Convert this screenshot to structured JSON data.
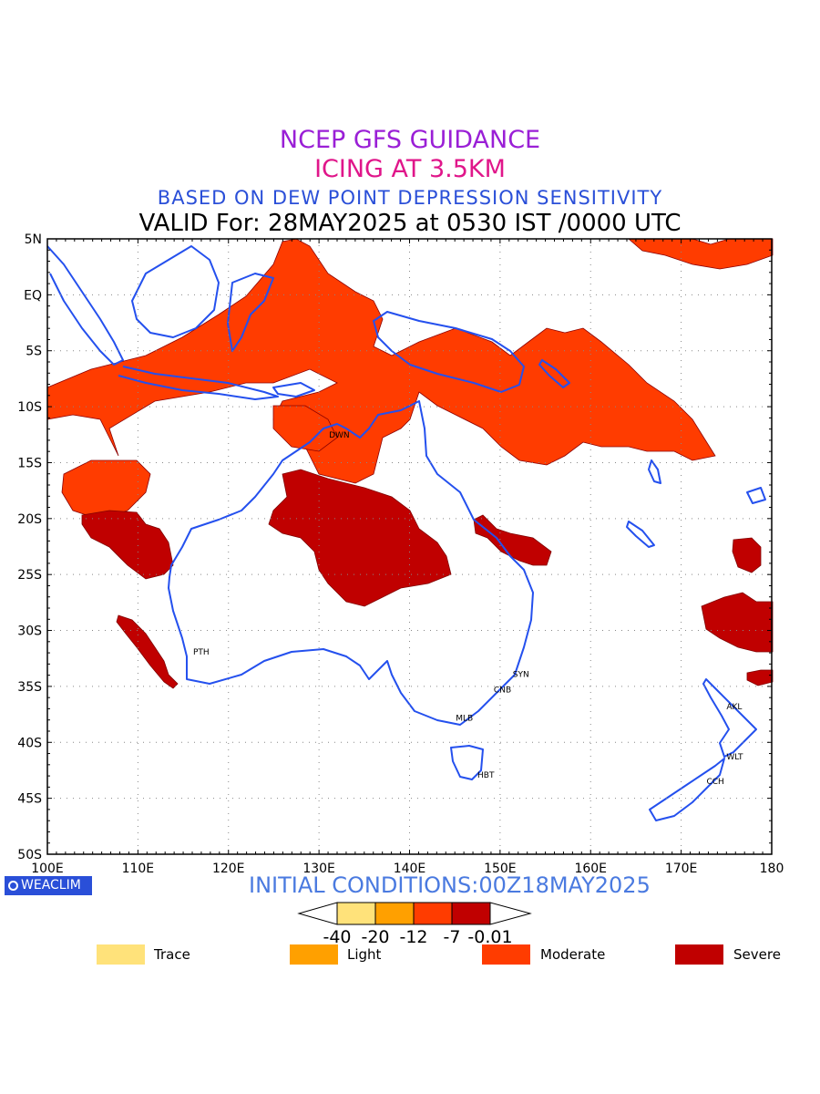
{
  "titles": {
    "line1": "NCEP GFS GUIDANCE",
    "line2": "ICING AT 3.5KM",
    "line3": "BASED ON DEW POINT DEPRESSION SENSITIVITY",
    "line4": "VALID For: 28MAY2025 at 0530 IST /0000 UTC"
  },
  "colors": {
    "title1": "#9a1fd6",
    "title2": "#e0168a",
    "title3": "#2a4fd8",
    "coast": "#2450ee",
    "trace": "#ffe27a",
    "light": "#ffa000",
    "moderate": "#ff3c00",
    "severe": "#c00000",
    "logo": "#2a4fd8",
    "init": "#4a7ae0"
  },
  "map": {
    "lat_labels": [
      "5N",
      "EQ",
      "5S",
      "10S",
      "15S",
      "20S",
      "25S",
      "30S",
      "35S",
      "40S",
      "45S",
      "50S"
    ],
    "lon_labels": [
      "100E",
      "110E",
      "120E",
      "130E",
      "140E",
      "150E",
      "160E",
      "170E",
      "180"
    ],
    "stations": [
      {
        "code": "DWN",
        "lon": 130.9,
        "lat": -12.5
      },
      {
        "code": "PTH",
        "lon": 115.9,
        "lat": -31.9
      },
      {
        "code": "SYN",
        "lon": 151.2,
        "lat": -33.9
      },
      {
        "code": "CNB",
        "lon": 149.1,
        "lat": -35.3
      },
      {
        "code": "MLB",
        "lon": 144.9,
        "lat": -37.8
      },
      {
        "code": "HBT",
        "lon": 147.3,
        "lat": -42.9
      },
      {
        "code": "AKL",
        "lon": 174.8,
        "lat": -36.8
      },
      {
        "code": "WLT",
        "lon": 174.8,
        "lat": -41.3
      },
      {
        "code": "CCH",
        "lon": 172.6,
        "lat": -43.5
      }
    ]
  },
  "logo": {
    "text": "WEACLIM"
  },
  "initial": "INITIAL CONDITIONS:00Z18MAY2025",
  "colorbar": {
    "ticks": [
      "-40",
      "-20",
      "-12",
      "-7",
      "-0.01"
    ]
  },
  "legend": [
    {
      "label": "Trace",
      "color": "#ffe27a"
    },
    {
      "label": "Light",
      "color": "#ffa000"
    },
    {
      "label": "Moderate",
      "color": "#ff3c00"
    },
    {
      "label": "Severe",
      "color": "#c00000"
    }
  ]
}
